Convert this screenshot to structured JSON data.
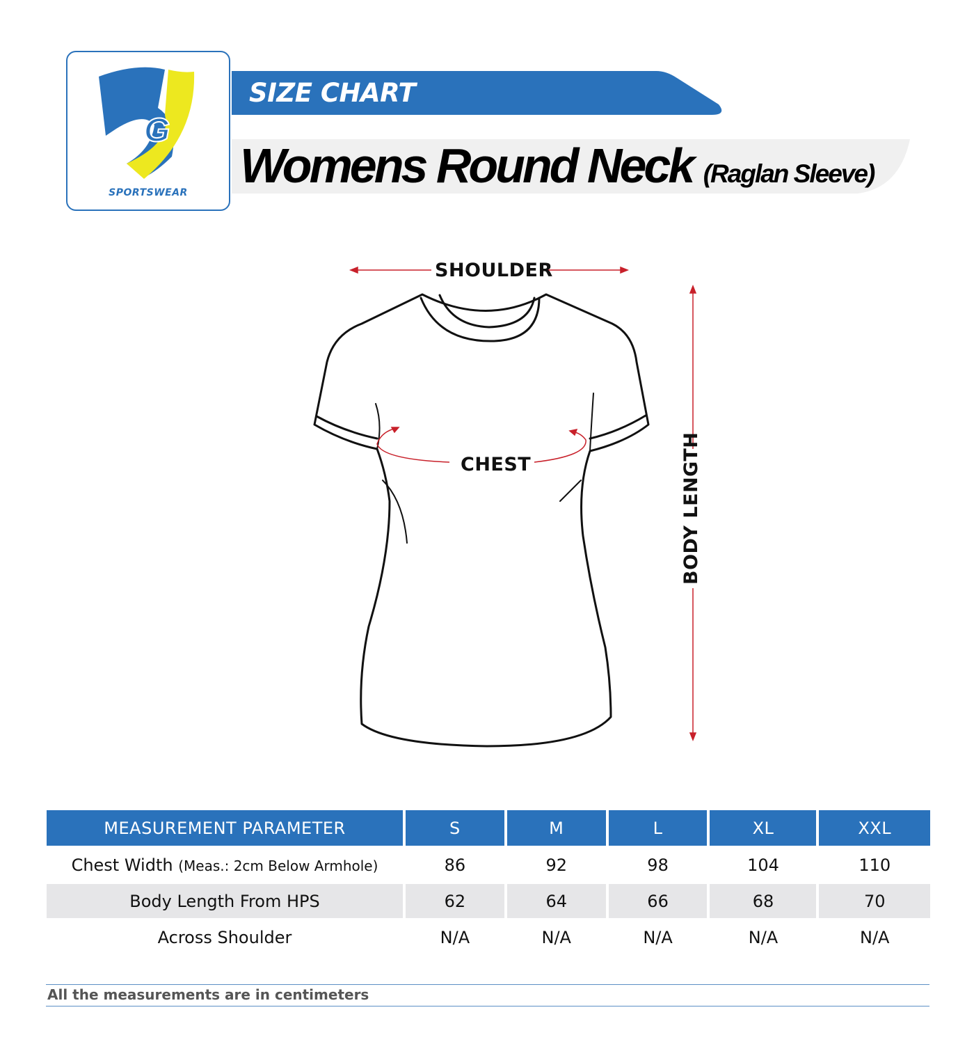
{
  "brand": {
    "logo_letters": "SG",
    "logo_text": "SPORTSWEAR",
    "colors": {
      "blue": "#2a72bb",
      "yellow": "#ede81f"
    }
  },
  "header": {
    "banner": "SIZE CHART",
    "title": "Womens Round Neck",
    "subtitle": "(Raglan Sleeve)"
  },
  "diagram": {
    "shoulder": "SHOULDER",
    "chest": "CHEST",
    "body_length": "BODY LENGTH",
    "arrow_color": "#c8202a"
  },
  "table": {
    "headers": [
      "MEASUREMENT PARAMETER",
      "S",
      "M",
      "L",
      "XL",
      "XXL"
    ],
    "rows": [
      {
        "label": "Chest Width",
        "note": "(Meas.: 2cm Below Armhole)",
        "values": [
          "86",
          "92",
          "98",
          "104",
          "110"
        ]
      },
      {
        "label": "Body Length From HPS",
        "values": [
          "62",
          "64",
          "66",
          "68",
          "70"
        ]
      },
      {
        "label": "Across Shoulder",
        "values": [
          "N/A",
          "N/A",
          "N/A",
          "N/A",
          "N/A"
        ]
      }
    ]
  },
  "footer": {
    "note": "All the measurements are in centimeters"
  }
}
